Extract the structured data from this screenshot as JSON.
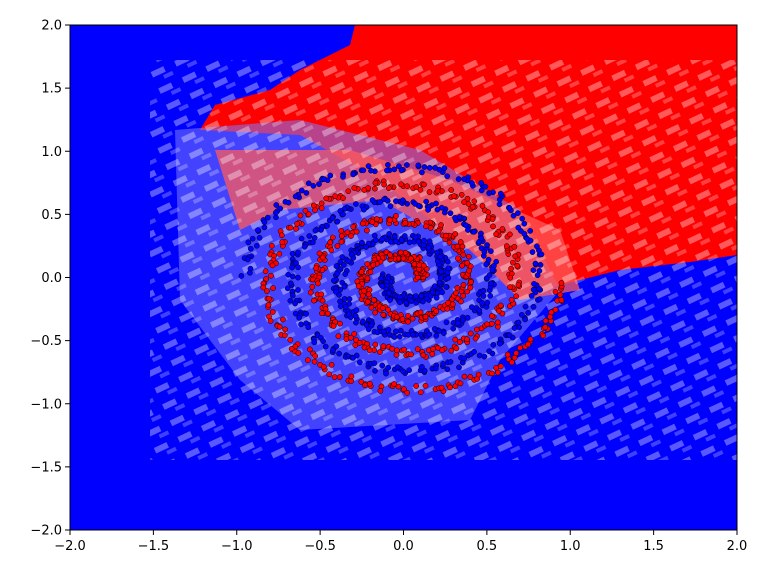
{
  "chart_data": {
    "type": "scatter",
    "title": "",
    "xlabel": "",
    "ylabel": "",
    "xlim": [
      -2.0,
      2.0
    ],
    "ylim": [
      -2.0,
      2.0
    ],
    "x_ticks": [
      "−2.0",
      "−1.5",
      "−1.0",
      "−0.5",
      "0.0",
      "0.5",
      "1.0",
      "1.5",
      "2.0"
    ],
    "y_ticks": [
      "−2.0",
      "−1.5",
      "−1.0",
      "−0.5",
      "0.0",
      "0.5",
      "1.0",
      "1.5",
      "2.0"
    ],
    "grid": false,
    "legend": "none",
    "background": "decision-surface",
    "colors": {
      "class_a": "#ff0000",
      "class_b": "#0000ff",
      "edge": "#000000"
    },
    "series": [
      {
        "class": "red",
        "shape": "two-arm spiral",
        "color": "#ff0000",
        "radius_range": [
          0.1,
          0.95
        ]
      },
      {
        "class": "blue",
        "shape": "two-arm spiral",
        "color": "#0000ff",
        "radius_range": [
          0.1,
          0.95
        ]
      }
    ]
  }
}
